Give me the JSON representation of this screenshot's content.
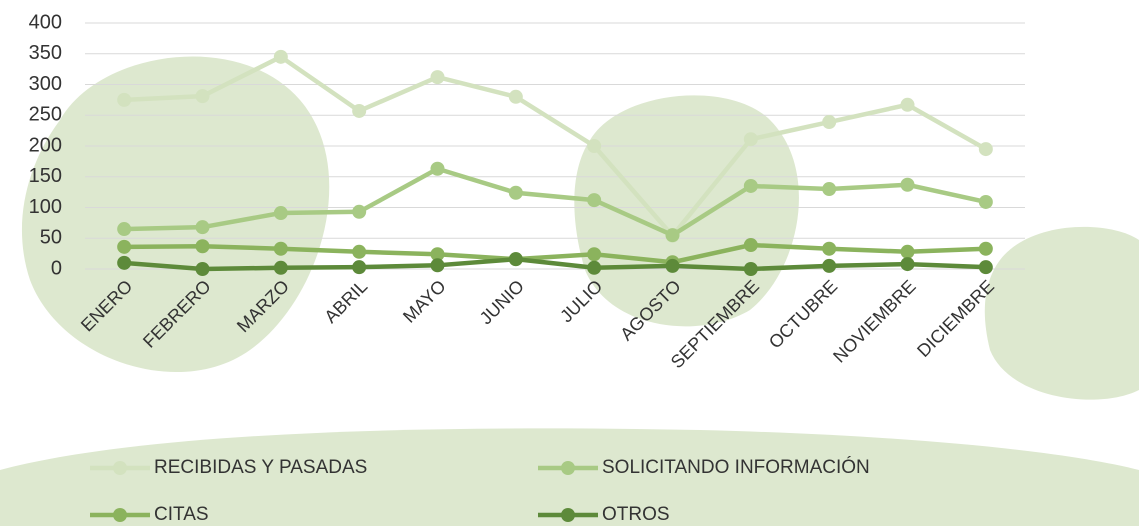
{
  "chart_data": {
    "type": "line",
    "categories": [
      "ENERO",
      "FEBRERO",
      "MARZO",
      "ABRIL",
      "MAYO",
      "JUNIO",
      "JULIO",
      "AGOSTO",
      "SEPTIEMBRE",
      "OCTUBRE",
      "NOVIEMBRE",
      "DICIEMBRE"
    ],
    "series": [
      {
        "name": "RECIBIDAS Y PASADAS",
        "color": "#d3e2bf",
        "values": [
          275,
          281,
          345,
          257,
          312,
          280,
          200,
          54,
          211,
          239,
          267,
          195
        ]
      },
      {
        "name": "SOLICITANDO INFORMACIÓN",
        "color": "#a8ca84",
        "values": [
          65,
          68,
          91,
          93,
          163,
          124,
          112,
          55,
          135,
          130,
          137,
          109
        ]
      },
      {
        "name": "CITAS",
        "color": "#8bb35d",
        "values": [
          36,
          37,
          33,
          28,
          24,
          16,
          24,
          11,
          39,
          33,
          28,
          33
        ]
      },
      {
        "name": "OTROS",
        "color": "#5d8a3a",
        "values": [
          10,
          0,
          2,
          3,
          6,
          16,
          2,
          5,
          0,
          5,
          8,
          3
        ]
      }
    ],
    "ylim": [
      0,
      400
    ],
    "yticks": [
      0,
      50,
      100,
      150,
      200,
      250,
      300,
      350,
      400
    ],
    "grid": true
  }
}
